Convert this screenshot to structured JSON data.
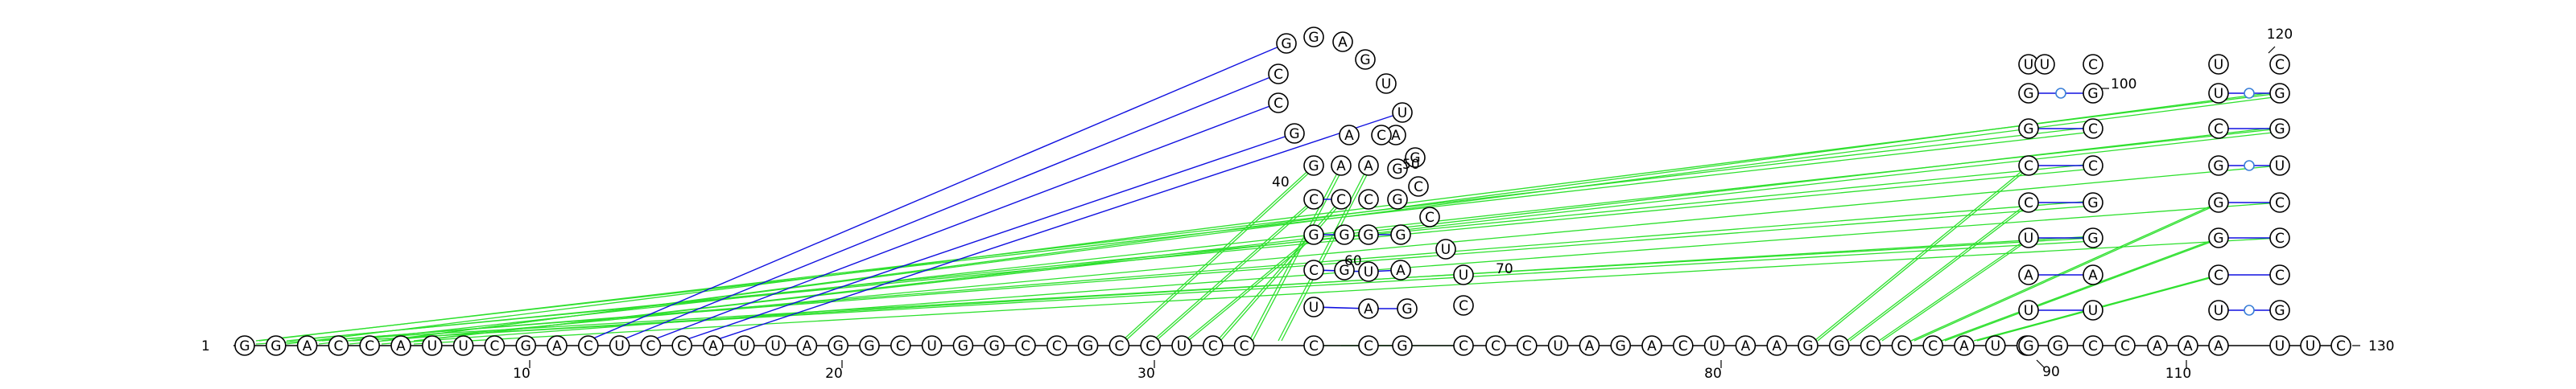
{
  "diagram": {
    "sequence": "GGACCAUUCGACUCCAUUAGGCUGGCCGCCUCCGGCCUUGUUCCGGGGAACGAGUUCGCCCUCCUAGACUAAGGCCCAUCGGGCAUUCCUGGUUCGCCCCAGGCCAGGACCGGUUGCCCAGGAAUCCAAAUUC",
    "number_labels": [
      {
        "text": "1"
      },
      {
        "text": "10"
      },
      {
        "text": "20"
      },
      {
        "text": "30"
      },
      {
        "text": "40"
      },
      {
        "text": "50"
      },
      {
        "text": "60"
      },
      {
        "text": "70"
      },
      {
        "text": "80"
      },
      {
        "text": "90"
      },
      {
        "text": "100"
      },
      {
        "text": "110"
      },
      {
        "text": "120"
      },
      {
        "text": "130"
      }
    ],
    "colors": {
      "canonical_pair": "#1010e0",
      "wobble_pair_marker": "#3a7fd8",
      "pseudoknot_pair": "#2ee02e",
      "backbone": "#000000",
      "nucleotide_fill": "#ffffff"
    }
  }
}
